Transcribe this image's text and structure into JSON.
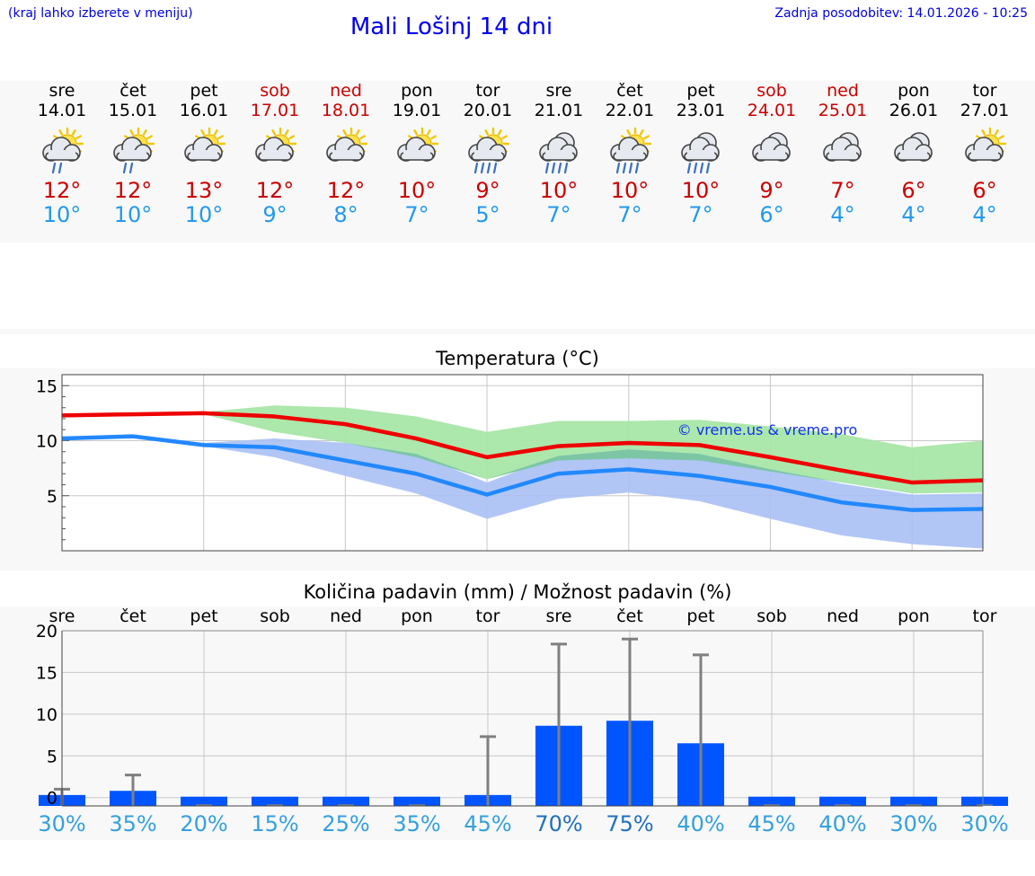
{
  "header": {
    "hint": "(kraj lahko izberete v meniju)",
    "title": "Mali Lošinj 14 dni",
    "updated": "Zadnja posodobitev: 14.01.2026 - 10:25"
  },
  "days": [
    {
      "name": "sre",
      "date": "14.01",
      "weekend": false,
      "icon": "sun-cloud-light-rain-icon",
      "max": "12°",
      "min": "10°"
    },
    {
      "name": "čet",
      "date": "15.01",
      "weekend": false,
      "icon": "sun-cloud-light-rain-icon",
      "max": "12°",
      "min": "10°"
    },
    {
      "name": "pet",
      "date": "16.01",
      "weekend": false,
      "icon": "sun-cloud-icon",
      "max": "13°",
      "min": "10°"
    },
    {
      "name": "sob",
      "date": "17.01",
      "weekend": true,
      "icon": "sun-cloud-icon",
      "max": "12°",
      "min": "9°"
    },
    {
      "name": "ned",
      "date": "18.01",
      "weekend": true,
      "icon": "sun-cloud-icon",
      "max": "12°",
      "min": "8°"
    },
    {
      "name": "pon",
      "date": "19.01",
      "weekend": false,
      "icon": "sun-cloud-icon",
      "max": "10°",
      "min": "7°"
    },
    {
      "name": "tor",
      "date": "20.01",
      "weekend": false,
      "icon": "sun-cloud-rain-icon",
      "max": "9°",
      "min": "5°"
    },
    {
      "name": "sre",
      "date": "21.01",
      "weekend": false,
      "icon": "cloud-rain-icon",
      "max": "10°",
      "min": "7°"
    },
    {
      "name": "čet",
      "date": "22.01",
      "weekend": false,
      "icon": "sun-cloud-rain-icon",
      "max": "10°",
      "min": "7°"
    },
    {
      "name": "pet",
      "date": "23.01",
      "weekend": false,
      "icon": "cloud-rain-icon",
      "max": "10°",
      "min": "7°"
    },
    {
      "name": "sob",
      "date": "24.01",
      "weekend": true,
      "icon": "cloud-icon",
      "max": "9°",
      "min": "6°"
    },
    {
      "name": "ned",
      "date": "25.01",
      "weekend": true,
      "icon": "cloud-icon",
      "max": "7°",
      "min": "4°"
    },
    {
      "name": "pon",
      "date": "26.01",
      "weekend": false,
      "icon": "cloud-icon",
      "max": "6°",
      "min": "4°"
    },
    {
      "name": "tor",
      "date": "27.01",
      "weekend": false,
      "icon": "sun-cloud-icon",
      "max": "6°",
      "min": "4°"
    }
  ],
  "colors": {
    "max_line": "#ee0000",
    "min_line": "#2288ff",
    "max_band": "#a8e6a8",
    "min_band": "#a8c0f4",
    "overlap_band": "#7cc6a6",
    "bar": "#0055ff",
    "whisker": "#808080",
    "weekend": "#cc0000",
    "prob": "#33a0dd"
  },
  "chart_data": [
    {
      "type": "line",
      "title": "Temperatura (°C)",
      "watermark": "© vreme.us & vreme.pro",
      "ylim": [
        0,
        16
      ],
      "yticks": [
        5,
        10,
        15
      ],
      "grid": true,
      "x": [
        0,
        1,
        2,
        3,
        4,
        5,
        6,
        7,
        8,
        9,
        10,
        11,
        12,
        13
      ],
      "series": [
        {
          "name": "",
          "role": "max",
          "values": [
            12.3,
            12.4,
            12.5,
            12.2,
            11.5,
            10.2,
            8.5,
            9.5,
            9.8,
            9.6,
            8.5,
            7.3,
            6.2,
            6.4
          ],
          "band_low": [
            12.3,
            12.4,
            12.4,
            10.8,
            9.8,
            8.5,
            6.5,
            8.2,
            8.4,
            8.2,
            7.2,
            6.2,
            5.2,
            5.3
          ],
          "band_high": [
            12.4,
            12.5,
            12.6,
            13.2,
            13.0,
            12.2,
            10.8,
            11.8,
            11.8,
            11.9,
            11.3,
            10.6,
            9.4,
            10.0
          ]
        },
        {
          "name": "",
          "role": "min",
          "values": [
            10.2,
            10.4,
            9.6,
            9.4,
            8.2,
            7.0,
            5.1,
            7.0,
            7.4,
            6.8,
            5.8,
            4.4,
            3.7,
            3.8
          ],
          "band_low": [
            10.0,
            10.3,
            9.5,
            8.5,
            6.8,
            5.2,
            2.9,
            4.7,
            5.3,
            4.5,
            2.9,
            1.4,
            0.6,
            0.2
          ],
          "band_high": [
            10.3,
            10.5,
            9.8,
            10.2,
            9.8,
            8.8,
            6.2,
            8.6,
            9.2,
            8.8,
            7.4,
            6.1,
            5.1,
            5.2
          ]
        }
      ]
    },
    {
      "type": "bar",
      "title": "Količina padavin (mm) / Možnost padavin (%)",
      "ylim": [
        -1,
        20
      ],
      "yticks": [
        0,
        5,
        10,
        15,
        20
      ],
      "grid": true,
      "categories": [
        "sre",
        "čet",
        "pet",
        "sob",
        "ned",
        "pon",
        "tor",
        "sre",
        "čet",
        "pet",
        "sob",
        "ned",
        "pon",
        "tor"
      ],
      "values": [
        0.2,
        0.7,
        0,
        0,
        0,
        0,
        0.2,
        8.5,
        9.1,
        6.4,
        0,
        0,
        0,
        0
      ],
      "error_high": [
        1.0,
        2.7,
        0,
        0,
        0,
        0,
        7.3,
        18.4,
        19.0,
        17.1,
        0,
        0,
        0,
        0
      ],
      "probability": [
        "30%",
        "35%",
        "20%",
        "15%",
        "25%",
        "35%",
        "45%",
        "70%",
        "75%",
        "40%",
        "45%",
        "40%",
        "30%",
        "30%"
      ]
    }
  ]
}
